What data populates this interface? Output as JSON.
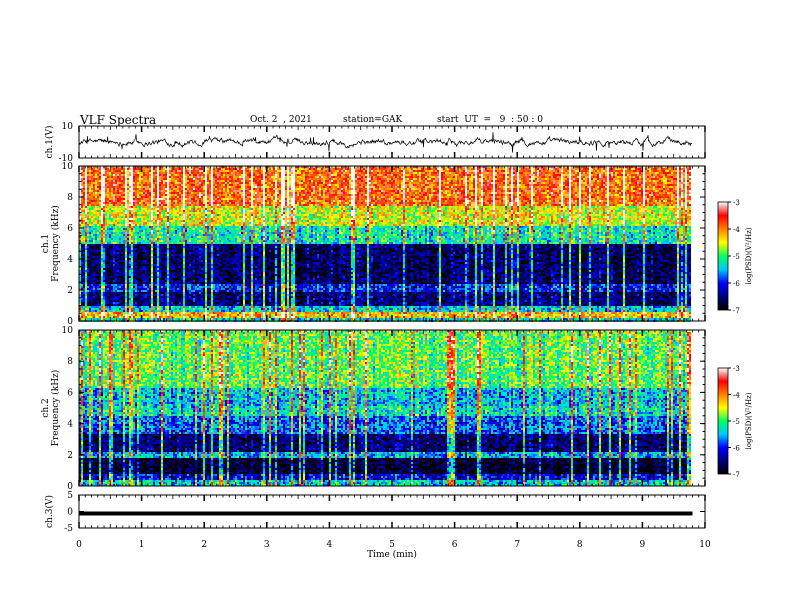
{
  "header": {
    "title": "VLF Spectra",
    "date": "Oct. 2  , 2021",
    "station": "station=GAK",
    "start": "start  UT  =   9  : 50 : 0"
  },
  "chart_data": [
    {
      "type": "line",
      "panel": "ch1-waveform",
      "ylabel": "ch.1(V)",
      "ylim": [
        -10,
        10
      ],
      "yticks": [
        "10",
        "-10"
      ],
      "xlim": [
        0,
        10
      ],
      "trace_color": "#000000"
    },
    {
      "type": "heatmap",
      "panel": "ch1-spectrogram",
      "ylabel": "ch.1\nFrequency (kHz)",
      "ylim": [
        0,
        10
      ],
      "yticks": [
        "0",
        "2",
        "4",
        "6",
        "8",
        "10"
      ],
      "xlim": [
        0,
        10
      ],
      "data_end_min": 9.8,
      "bands": [
        {
          "from": 0.0,
          "to": 0.3,
          "level": -5.3
        },
        {
          "from": 0.3,
          "to": 0.7,
          "level": -4.2
        },
        {
          "from": 0.7,
          "to": 1.0,
          "level": -5.4
        },
        {
          "from": 1.0,
          "to": 2.0,
          "level": -6.5
        },
        {
          "from": 2.0,
          "to": 2.4,
          "level": -6.0
        },
        {
          "from": 2.4,
          "to": 5.0,
          "level": -6.6
        },
        {
          "from": 5.0,
          "to": 6.2,
          "level": -5.2
        },
        {
          "from": 6.2,
          "to": 7.5,
          "level": -4.5
        },
        {
          "from": 7.5,
          "to": 10.0,
          "level": -3.8
        }
      ],
      "colorbar": {
        "label": "log(PSD)(V²/Hz)",
        "range": [
          -7,
          -3
        ],
        "ticks": [
          "-3",
          "-4",
          "-5",
          "-6",
          "-7"
        ]
      }
    },
    {
      "type": "heatmap",
      "panel": "ch2-spectrogram",
      "ylabel": "ch.2\nFrequency (kHz)",
      "ylim": [
        0,
        10
      ],
      "yticks": [
        "0",
        "2",
        "4",
        "6",
        "8",
        "10"
      ],
      "xlim": [
        0,
        10
      ],
      "data_end_min": 9.8,
      "bands": [
        {
          "from": 0.0,
          "to": 0.4,
          "level": -5.4
        },
        {
          "from": 0.4,
          "to": 0.8,
          "level": -6.2
        },
        {
          "from": 0.8,
          "to": 1.8,
          "level": -6.9
        },
        {
          "from": 1.8,
          "to": 2.2,
          "level": -5.6
        },
        {
          "from": 2.2,
          "to": 3.4,
          "level": -6.6
        },
        {
          "from": 3.4,
          "to": 4.6,
          "level": -5.8
        },
        {
          "from": 4.6,
          "to": 5.2,
          "level": -5.3
        },
        {
          "from": 5.2,
          "to": 6.4,
          "level": -5.5
        },
        {
          "from": 6.4,
          "to": 10.0,
          "level": -4.9
        }
      ],
      "colorbar": {
        "label": "log(PSD)(V²/Hz)",
        "range": [
          -7,
          -3
        ],
        "ticks": [
          "-3",
          "-4",
          "-5",
          "-6",
          "-7"
        ]
      }
    },
    {
      "type": "line",
      "panel": "ch3-waveform",
      "ylabel": "ch.3(V)",
      "ylim": [
        -5,
        5
      ],
      "yticks": [
        "5",
        "0",
        "-5"
      ],
      "xlim": [
        0,
        10
      ],
      "constant_value": -0.6,
      "trace_color": "#000000"
    }
  ],
  "xaxis": {
    "label": "Time  (min)",
    "range": [
      0,
      10
    ],
    "ticks": [
      "0",
      "1",
      "2",
      "3",
      "4",
      "5",
      "6",
      "7",
      "8",
      "9",
      "10"
    ]
  },
  "colormap": [
    "#000000",
    "#00007a",
    "#0000ff",
    "#00c8ff",
    "#00ff64",
    "#ffff00",
    "#ff8000",
    "#ff0000",
    "#ffffff"
  ]
}
